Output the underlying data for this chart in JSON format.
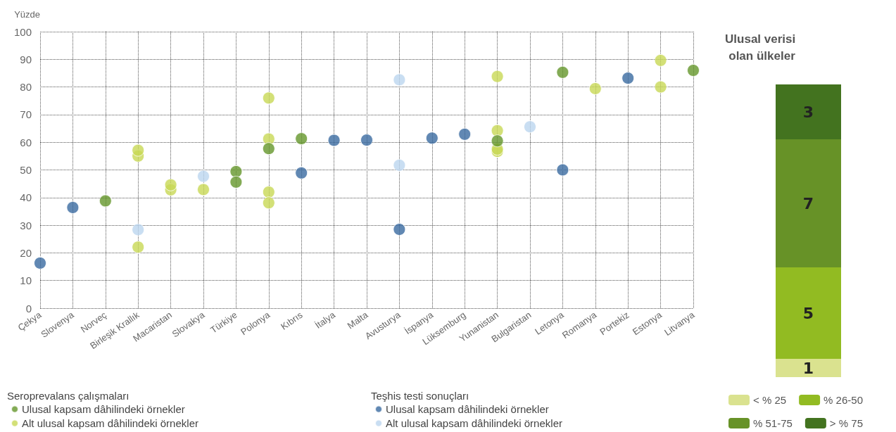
{
  "chart_data": [
    {
      "type": "scatter",
      "ylabel": "Yüzde",
      "categories": [
        "Çekya",
        "Slovenya",
        "Norveç",
        "Birleşik Krallık",
        "Macaristan",
        "Slovakya",
        "Türkiye",
        "Polonya",
        "Kıbrıs",
        "İtalya",
        "Malta",
        "Avusturya",
        "İspanya",
        "Lüksemburg",
        "Yunanistan",
        "Bulgaristan",
        "Letonya",
        "Romanya",
        "Portekiz",
        "Estonya",
        "Litvanya"
      ],
      "series": [
        {
          "name": "Ulusal kapsam dâhilindeki örnekler",
          "color": "#64962a",
          "x": [
            "Norveç",
            "Türkiye",
            "Türkiye",
            "Polonya",
            "Kıbrıs",
            "Yunanistan",
            "Letonya",
            "Litvanya"
          ],
          "values": [
            38.8,
            49.4,
            45.6,
            57.7,
            61.3,
            60.5,
            85.3,
            86.0
          ]
        },
        {
          "name": "Alt ulusal kapsam dâhilindeki örnekler",
          "color": "#c8d855",
          "x": [
            "Birleşik Krallık",
            "Birleşik Krallık",
            "Birleşik Krallık",
            "Macaristan",
            "Macaristan",
            "Slovakya",
            "Polonya",
            "Polonya",
            "Polonya",
            "Polonya",
            "Yunanistan",
            "Yunanistan",
            "Yunanistan",
            "Yunanistan",
            "Romanya",
            "Estonya",
            "Estonya"
          ],
          "values": [
            55.0,
            57.1,
            22.1,
            42.8,
            44.6,
            42.9,
            76.0,
            61.2,
            42.0,
            38.1,
            83.8,
            64.2,
            56.7,
            57.5,
            79.4,
            89.6,
            80.0
          ]
        },
        {
          "name": "Ulusal kapsam dâhilindeki örnekler",
          "color": "#3a6aa0",
          "x": [
            "Çekya",
            "Slovenya",
            "Kıbrıs",
            "İtalya",
            "Malta",
            "Avusturya",
            "İspanya",
            "Lüksemburg",
            "Letonya",
            "Portekiz"
          ],
          "values": [
            16.3,
            36.4,
            48.9,
            60.7,
            60.8,
            28.5,
            61.5,
            62.9,
            50.0,
            83.2
          ]
        },
        {
          "name": "Alt ulusal kapsam dâhilindeki örnekler",
          "color": "#bcd6ef",
          "x": [
            "Birleşik Krallık",
            "Slovakya",
            "Avusturya",
            "Avusturya",
            "Bulgaristan"
          ],
          "values": [
            28.4,
            47.7,
            82.6,
            51.7,
            65.6
          ]
        }
      ],
      "ylim": [
        0,
        100
      ],
      "yticks": [
        0,
        10,
        20,
        30,
        40,
        50,
        60,
        70,
        80,
        90,
        100
      ],
      "grid": true,
      "marker": "circle",
      "legend": "bottom left",
      "annotations": [
        "Seroprevalans çalışmaları",
        "Teşhis testi sonuçları"
      ]
    },
    {
      "type": "bar",
      "title": "Ulusal verisi olan ülkeler",
      "categories": [
        null
      ],
      "stacked": true,
      "data_labels": true,
      "legend": "bottom",
      "series": [
        {
          "name": "< % 25",
          "color": "#dae28f",
          "values": [
            1
          ]
        },
        {
          "name": "% 26-50",
          "color": "#92bb22",
          "values": [
            5
          ]
        },
        {
          "name": "% 51-75",
          "color": "#679227",
          "values": [
            7
          ]
        },
        {
          "name": "> % 75",
          "color": "#43731f",
          "values": [
            3
          ]
        }
      ]
    }
  ]
}
